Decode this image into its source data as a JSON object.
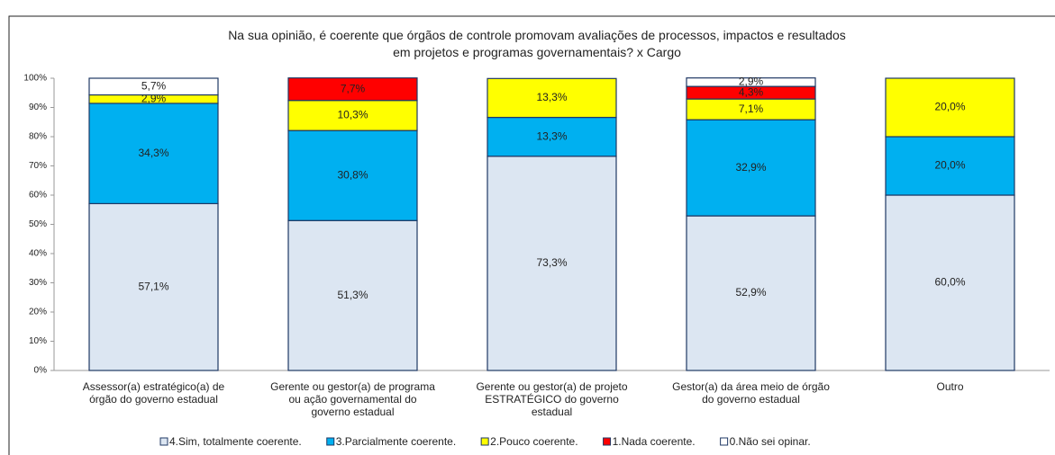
{
  "chart_data": {
    "type": "stacked_bar",
    "title": "Na sua opinião, é coerente que órgãos de controle promovam avaliações de processos, impactos e resultados\nem projetos e programas governamentais? x Cargo",
    "categories": [
      "Assessor(a) estratégico(a) de\nórgão do governo estadual",
      "Gerente ou gestor(a) de programa\nou ação governamental do\ngoverno estadual",
      "Gerente ou gestor(a) de projeto\nESTRATÉGICO do governo\nestadual",
      "Gestor(a) da área meio de órgão\ndo governo estadual",
      "Outro"
    ],
    "series": [
      {
        "name": "4.Sim, totalmente coerente.",
        "color": "#dce6f2",
        "values": [
          57.1,
          51.3,
          73.3,
          52.9,
          60.0
        ],
        "value_labels": [
          "57,1%",
          "51,3%",
          "73,3%",
          "52,9%",
          "60,0%"
        ]
      },
      {
        "name": "3.Parcialmente coerente.",
        "color": "#00b0f0",
        "values": [
          34.3,
          30.8,
          13.3,
          32.9,
          20.0
        ],
        "value_labels": [
          "34,3%",
          "30,8%",
          "13,3%",
          "32,9%",
          "20,0%"
        ]
      },
      {
        "name": "2.Pouco coerente.",
        "color": "#ffff00",
        "values": [
          2.9,
          10.3,
          13.3,
          7.1,
          20.0
        ],
        "value_labels": [
          "2,9%",
          "10,3%",
          "13,3%",
          "7,1%",
          "20,0%"
        ]
      },
      {
        "name": "1.Nada coerente.",
        "color": "#ff0000",
        "values": [
          null,
          7.7,
          null,
          4.3,
          null
        ],
        "value_labels": [
          null,
          "7,7%",
          null,
          "4,3%",
          null
        ]
      },
      {
        "name": "0.Não sei opinar.",
        "color": "#ffffff",
        "values": [
          5.7,
          null,
          null,
          2.9,
          null
        ],
        "value_labels": [
          "5,7%",
          null,
          null,
          "2,9%",
          null
        ]
      }
    ],
    "ylim": [
      0,
      100
    ],
    "yticks": [
      {
        "value": 0,
        "label": "0%"
      },
      {
        "value": 10,
        "label": "10%"
      },
      {
        "value": 20,
        "label": "20%"
      },
      {
        "value": 30,
        "label": "30%"
      },
      {
        "value": 40,
        "label": "40%"
      },
      {
        "value": 50,
        "label": "50%"
      },
      {
        "value": 60,
        "label": "60%"
      },
      {
        "value": 70,
        "label": "70%"
      },
      {
        "value": 80,
        "label": "80%"
      },
      {
        "value": 90,
        "label": "90%"
      },
      {
        "value": 100,
        "label": "100%"
      }
    ],
    "legend": "bottom"
  }
}
